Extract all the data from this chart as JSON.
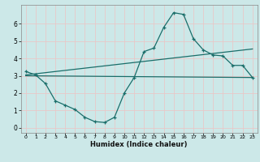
{
  "title": "",
  "xlabel": "Humidex (Indice chaleur)",
  "background_color": "#cce8e8",
  "grid_color": "#e8c8c8",
  "line_color": "#1a6e6a",
  "xlim": [
    -0.5,
    23.5
  ],
  "ylim": [
    -0.3,
    7.1
  ],
  "yticks": [
    0,
    1,
    2,
    3,
    4,
    5,
    6
  ],
  "xticks": [
    0,
    1,
    2,
    3,
    4,
    5,
    6,
    7,
    8,
    9,
    10,
    11,
    12,
    13,
    14,
    15,
    16,
    17,
    18,
    19,
    20,
    21,
    22,
    23
  ],
  "line1_x": [
    0,
    1,
    2,
    3,
    4,
    5,
    6,
    7,
    8,
    9,
    10,
    11,
    12,
    13,
    14,
    15,
    16,
    17,
    18,
    19,
    20,
    21,
    22,
    23
  ],
  "line1_y": [
    3.25,
    3.05,
    2.55,
    1.55,
    1.3,
    1.05,
    0.6,
    0.35,
    0.3,
    0.6,
    2.0,
    2.9,
    4.4,
    4.6,
    5.8,
    6.65,
    6.55,
    5.15,
    4.5,
    4.2,
    4.15,
    3.6,
    3.6,
    2.9
  ],
  "line2_x": [
    0,
    23
  ],
  "line2_y": [
    3.05,
    4.55
  ],
  "line3_x": [
    0,
    23
  ],
  "line3_y": [
    3.0,
    2.9
  ],
  "figsize": [
    3.2,
    2.0
  ],
  "dpi": 100
}
